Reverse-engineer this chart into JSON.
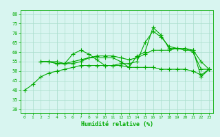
{
  "title": "",
  "xlabel": "Humidité relative (%)",
  "ylabel": "",
  "xlim": [
    -0.5,
    23.5
  ],
  "ylim": [
    28,
    82
  ],
  "yticks": [
    30,
    35,
    40,
    45,
    50,
    55,
    60,
    65,
    70,
    75,
    80
  ],
  "xticks": [
    0,
    1,
    2,
    3,
    4,
    5,
    6,
    7,
    8,
    9,
    10,
    11,
    12,
    13,
    14,
    15,
    16,
    17,
    18,
    19,
    20,
    21,
    22,
    23
  ],
  "bg_color": "#d8f5f0",
  "grid_color": "#aaddcc",
  "line_color": "#00aa00",
  "line1": [
    [
      0,
      40
    ],
    [
      1,
      43
    ],
    [
      2,
      47
    ],
    [
      3,
      49
    ],
    [
      4,
      50
    ],
    [
      5,
      51
    ],
    [
      6,
      52
    ],
    [
      7,
      53
    ],
    [
      8,
      53
    ],
    [
      9,
      53
    ],
    [
      10,
      53
    ],
    [
      11,
      53
    ],
    [
      12,
      53
    ],
    [
      13,
      52
    ],
    [
      14,
      52
    ],
    [
      15,
      52
    ],
    [
      16,
      52
    ],
    [
      17,
      51
    ],
    [
      18,
      51
    ],
    [
      19,
      51
    ],
    [
      20,
      51
    ],
    [
      21,
      50
    ],
    [
      22,
      48
    ],
    [
      23,
      51
    ]
  ],
  "line2": [
    [
      2,
      55
    ],
    [
      3,
      55
    ],
    [
      4,
      55
    ],
    [
      5,
      54
    ],
    [
      6,
      59
    ],
    [
      7,
      61
    ],
    [
      8,
      59
    ],
    [
      9,
      56
    ],
    [
      10,
      53
    ],
    [
      11,
      53
    ],
    [
      12,
      54
    ],
    [
      13,
      54
    ],
    [
      14,
      55
    ],
    [
      15,
      65
    ],
    [
      16,
      71
    ],
    [
      17,
      68
    ],
    [
      18,
      63
    ],
    [
      19,
      62
    ],
    [
      20,
      61
    ],
    [
      21,
      61
    ],
    [
      22,
      47
    ],
    [
      23,
      51
    ]
  ],
  "line3": [
    [
      2,
      55
    ],
    [
      3,
      55
    ],
    [
      4,
      54
    ],
    [
      5,
      54
    ],
    [
      6,
      54
    ],
    [
      7,
      55
    ],
    [
      8,
      57
    ],
    [
      9,
      57
    ],
    [
      10,
      57
    ],
    [
      11,
      57
    ],
    [
      12,
      55
    ],
    [
      13,
      52
    ],
    [
      14,
      58
    ],
    [
      15,
      60
    ],
    [
      16,
      73
    ],
    [
      17,
      69
    ],
    [
      18,
      62
    ],
    [
      19,
      62
    ],
    [
      20,
      62
    ],
    [
      21,
      60
    ],
    [
      22,
      51
    ],
    [
      23,
      51
    ]
  ],
  "line4": [
    [
      2,
      55
    ],
    [
      3,
      55
    ],
    [
      4,
      54
    ],
    [
      5,
      54
    ],
    [
      6,
      55
    ],
    [
      7,
      56
    ],
    [
      8,
      57
    ],
    [
      9,
      58
    ],
    [
      10,
      58
    ],
    [
      11,
      58
    ],
    [
      12,
      57
    ],
    [
      13,
      56
    ],
    [
      14,
      57
    ],
    [
      15,
      59
    ],
    [
      16,
      61
    ],
    [
      17,
      61
    ],
    [
      18,
      61
    ],
    [
      19,
      62
    ],
    [
      20,
      62
    ],
    [
      21,
      61
    ],
    [
      22,
      55
    ],
    [
      23,
      51
    ]
  ]
}
